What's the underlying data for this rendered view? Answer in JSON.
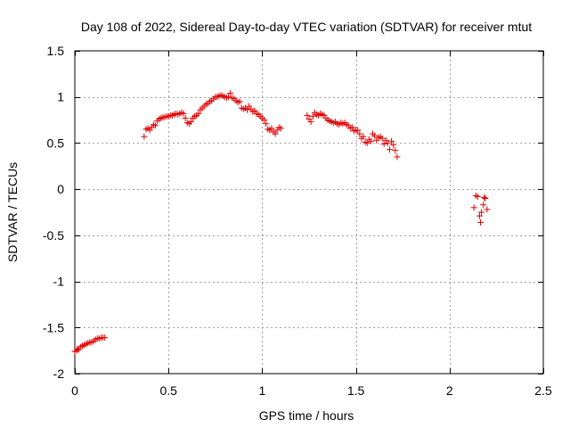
{
  "chart_data": {
    "type": "scatter",
    "title": "Day 108 of 2022, Sidereal Day-to-day VTEC variation (SDTVAR) for receiver mtut",
    "xlabel": "GPS time / hours",
    "ylabel": "SDTVAR / TECUs",
    "xlim": [
      0,
      2.5
    ],
    "ylim": [
      -2,
      1.5
    ],
    "xticks": [
      0,
      0.5,
      1,
      1.5,
      2,
      2.5
    ],
    "xtick_labels": [
      "0",
      "0.5",
      "1",
      "1.5",
      "2",
      "2.5"
    ],
    "yticks": [
      -2,
      -1.5,
      -1,
      -0.5,
      0,
      0.5,
      1,
      1.5
    ],
    "ytick_labels": [
      "-2",
      "-1.5",
      "-1",
      "-0.5",
      "0",
      "0.5",
      "1",
      "1.5"
    ],
    "grid": true,
    "marker": "+",
    "color": "#e00000",
    "series": [
      {
        "name": "SDTVAR",
        "points": [
          [
            0.0,
            -1.76
          ],
          [
            0.01,
            -1.75
          ],
          [
            0.015,
            -1.73
          ],
          [
            0.02,
            -1.74
          ],
          [
            0.03,
            -1.71
          ],
          [
            0.04,
            -1.7
          ],
          [
            0.05,
            -1.69
          ],
          [
            0.06,
            -1.68
          ],
          [
            0.07,
            -1.67
          ],
          [
            0.08,
            -1.66
          ],
          [
            0.09,
            -1.66
          ],
          [
            0.1,
            -1.65
          ],
          [
            0.11,
            -1.63
          ],
          [
            0.12,
            -1.62
          ],
          [
            0.13,
            -1.62
          ],
          [
            0.14,
            -1.61
          ],
          [
            0.15,
            -1.61
          ],
          [
            0.16,
            -1.61
          ],
          [
            0.37,
            0.57
          ],
          [
            0.38,
            0.65
          ],
          [
            0.39,
            0.66
          ],
          [
            0.4,
            0.64
          ],
          [
            0.41,
            0.67
          ],
          [
            0.42,
            0.7
          ],
          [
            0.43,
            0.69
          ],
          [
            0.44,
            0.74
          ],
          [
            0.45,
            0.76
          ],
          [
            0.46,
            0.77
          ],
          [
            0.47,
            0.78
          ],
          [
            0.48,
            0.78
          ],
          [
            0.49,
            0.79
          ],
          [
            0.5,
            0.79
          ],
          [
            0.51,
            0.8
          ],
          [
            0.52,
            0.8
          ],
          [
            0.53,
            0.81
          ],
          [
            0.54,
            0.82
          ],
          [
            0.55,
            0.81
          ],
          [
            0.56,
            0.82
          ],
          [
            0.57,
            0.83
          ],
          [
            0.58,
            0.82
          ],
          [
            0.59,
            0.77
          ],
          [
            0.6,
            0.72
          ],
          [
            0.61,
            0.71
          ],
          [
            0.62,
            0.73
          ],
          [
            0.63,
            0.77
          ],
          [
            0.64,
            0.79
          ],
          [
            0.65,
            0.8
          ],
          [
            0.66,
            0.82
          ],
          [
            0.67,
            0.86
          ],
          [
            0.68,
            0.88
          ],
          [
            0.69,
            0.9
          ],
          [
            0.7,
            0.92
          ],
          [
            0.71,
            0.93
          ],
          [
            0.72,
            0.95
          ],
          [
            0.73,
            0.96
          ],
          [
            0.74,
            0.98
          ],
          [
            0.75,
            1.0
          ],
          [
            0.76,
            1.0
          ],
          [
            0.77,
            1.01
          ],
          [
            0.78,
            1.02
          ],
          [
            0.79,
            1.01
          ],
          [
            0.8,
            1.0
          ],
          [
            0.81,
            0.99
          ],
          [
            0.82,
            1.0
          ],
          [
            0.83,
            1.04
          ],
          [
            0.84,
            0.99
          ],
          [
            0.85,
            0.98
          ],
          [
            0.86,
            0.96
          ],
          [
            0.87,
            0.94
          ],
          [
            0.88,
            0.95
          ],
          [
            0.89,
            0.88
          ],
          [
            0.9,
            0.87
          ],
          [
            0.91,
            0.88
          ],
          [
            0.92,
            0.86
          ],
          [
            0.93,
            0.9
          ],
          [
            0.94,
            0.87
          ],
          [
            0.95,
            0.84
          ],
          [
            0.96,
            0.85
          ],
          [
            0.97,
            0.82
          ],
          [
            0.98,
            0.81
          ],
          [
            0.99,
            0.79
          ],
          [
            1.0,
            0.77
          ],
          [
            1.01,
            0.75
          ],
          [
            1.02,
            0.71
          ],
          [
            1.03,
            0.65
          ],
          [
            1.04,
            0.64
          ],
          [
            1.05,
            0.66
          ],
          [
            1.06,
            0.62
          ],
          [
            1.07,
            0.6
          ],
          [
            1.08,
            0.64
          ],
          [
            1.09,
            0.67
          ],
          [
            1.1,
            0.66
          ],
          [
            1.24,
            0.8
          ],
          [
            1.25,
            0.76
          ],
          [
            1.26,
            0.73
          ],
          [
            1.27,
            0.79
          ],
          [
            1.28,
            0.83
          ],
          [
            1.29,
            0.81
          ],
          [
            1.3,
            0.8
          ],
          [
            1.31,
            0.82
          ],
          [
            1.32,
            0.81
          ],
          [
            1.33,
            0.8
          ],
          [
            1.34,
            0.77
          ],
          [
            1.35,
            0.75
          ],
          [
            1.36,
            0.74
          ],
          [
            1.37,
            0.73
          ],
          [
            1.38,
            0.72
          ],
          [
            1.39,
            0.73
          ],
          [
            1.4,
            0.71
          ],
          [
            1.41,
            0.7
          ],
          [
            1.42,
            0.72
          ],
          [
            1.43,
            0.71
          ],
          [
            1.44,
            0.72
          ],
          [
            1.45,
            0.7
          ],
          [
            1.46,
            0.69
          ],
          [
            1.47,
            0.66
          ],
          [
            1.48,
            0.67
          ],
          [
            1.49,
            0.63
          ],
          [
            1.5,
            0.64
          ],
          [
            1.51,
            0.64
          ],
          [
            1.52,
            0.6
          ],
          [
            1.53,
            0.55
          ],
          [
            1.54,
            0.57
          ],
          [
            1.55,
            0.51
          ],
          [
            1.56,
            0.5
          ],
          [
            1.57,
            0.54
          ],
          [
            1.58,
            0.52
          ],
          [
            1.59,
            0.6
          ],
          [
            1.6,
            0.58
          ],
          [
            1.61,
            0.53
          ],
          [
            1.62,
            0.56
          ],
          [
            1.63,
            0.57
          ],
          [
            1.64,
            0.55
          ],
          [
            1.65,
            0.49
          ],
          [
            1.66,
            0.53
          ],
          [
            1.67,
            0.5
          ],
          [
            1.68,
            0.43
          ],
          [
            1.69,
            0.52
          ],
          [
            1.7,
            0.48
          ],
          [
            1.71,
            0.42
          ],
          [
            1.72,
            0.35
          ],
          [
            2.13,
            -0.2
          ],
          [
            2.14,
            -0.07
          ],
          [
            2.15,
            -0.08
          ],
          [
            2.16,
            -0.29
          ],
          [
            2.165,
            -0.36
          ],
          [
            2.17,
            -0.25
          ],
          [
            2.18,
            -0.17
          ],
          [
            2.185,
            -0.09
          ],
          [
            2.19,
            -0.1
          ],
          [
            2.2,
            -0.22
          ]
        ]
      }
    ]
  }
}
